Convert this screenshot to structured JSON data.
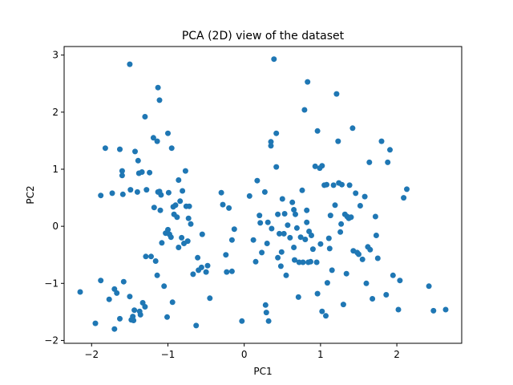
{
  "chart_data": {
    "type": "scatter",
    "title": "PCA (2D) view of the dataset",
    "xlabel": "PC1",
    "ylabel": "PC2",
    "xlim": [
      -2.36,
      2.85
    ],
    "ylim": [
      -2.05,
      3.15
    ],
    "xticks": [
      -2,
      -1,
      0,
      1,
      2
    ],
    "yticks": [
      -2,
      -1,
      0,
      1,
      2,
      3
    ],
    "grid": false,
    "color": "#1f77b4",
    "points": [
      [
        -2.15,
        -1.15
      ],
      [
        -1.95,
        -1.7
      ],
      [
        -1.88,
        0.54
      ],
      [
        -1.88,
        -0.95
      ],
      [
        -1.82,
        1.37
      ],
      [
        -1.77,
        -1.28
      ],
      [
        -1.73,
        0.58
      ],
      [
        -1.7,
        -1.8
      ],
      [
        -1.67,
        -1.17
      ],
      [
        -1.63,
        1.35
      ],
      [
        -1.63,
        -1.62
      ],
      [
        -1.6,
        0.89
      ],
      [
        -1.59,
        0.56
      ],
      [
        -1.6,
        0.97
      ],
      [
        -1.58,
        -0.97
      ],
      [
        -1.5,
        2.84
      ],
      [
        -1.5,
        -1.23
      ],
      [
        -1.49,
        0.64
      ],
      [
        -1.48,
        -1.64
      ],
      [
        -1.46,
        -1.58
      ],
      [
        -1.45,
        -1.65
      ],
      [
        -1.44,
        -1.47
      ],
      [
        -1.43,
        1.31
      ],
      [
        -1.4,
        0.6
      ],
      [
        -1.39,
        1.15
      ],
      [
        -1.38,
        0.93
      ],
      [
        -1.37,
        -1.49
      ],
      [
        -1.36,
        -1.55
      ],
      [
        -1.34,
        0.95
      ],
      [
        -1.33,
        -1.34
      ],
      [
        -1.3,
        -1.41
      ],
      [
        -1.3,
        1.92
      ],
      [
        -1.29,
        -0.53
      ],
      [
        -1.28,
        0.64
      ],
      [
        -1.24,
        0.94
      ],
      [
        -1.22,
        -0.53
      ],
      [
        -1.19,
        1.55
      ],
      [
        -1.18,
        0.33
      ],
      [
        -1.16,
        -0.61
      ],
      [
        -1.14,
        1.49
      ],
      [
        -1.13,
        2.43
      ],
      [
        -1.11,
        2.21
      ],
      [
        -1.14,
        -0.86
      ],
      [
        -1.13,
        0.6
      ],
      [
        -1.11,
        0.61
      ],
      [
        -1.1,
        0.28
      ],
      [
        -1.09,
        0.55
      ],
      [
        -1.08,
        -0.29
      ],
      [
        -1.05,
        -1.05
      ],
      [
        -1.03,
        -0.12
      ],
      [
        -1.01,
        -1.59
      ],
      [
        -1.0,
        1.63
      ],
      [
        -0.99,
        0.59
      ],
      [
        -1.0,
        -0.06
      ],
      [
        -0.98,
        -0.14
      ],
      [
        -0.96,
        -0.19
      ],
      [
        -0.95,
        1.37
      ],
      [
        -0.94,
        -1.33
      ],
      [
        -0.93,
        0.34
      ],
      [
        -0.92,
        0.21
      ],
      [
        -0.9,
        0.37
      ],
      [
        -0.88,
        0.16
      ],
      [
        -0.86,
        -0.37
      ],
      [
        -0.86,
        0.81
      ],
      [
        -0.84,
        0.44
      ],
      [
        -0.82,
        -0.2
      ],
      [
        -0.81,
        0.62
      ],
      [
        -0.79,
        -0.3
      ],
      [
        -0.77,
        0.97
      ],
      [
        -0.76,
        0.35
      ],
      [
        -0.74,
        -0.26
      ],
      [
        -0.73,
        0.14
      ],
      [
        -0.72,
        0.35
      ],
      [
        -0.7,
        0.04
      ],
      [
        -0.67,
        -0.84
      ],
      [
        -0.63,
        -1.74
      ],
      [
        -0.61,
        -0.55
      ],
      [
        -0.6,
        -0.77
      ],
      [
        -0.56,
        -0.72
      ],
      [
        -0.55,
        -0.14
      ],
      [
        -0.5,
        -0.8
      ],
      [
        -0.48,
        -0.69
      ],
      [
        -0.45,
        -1.26
      ],
      [
        -0.3,
        0.59
      ],
      [
        -0.28,
        0.38
      ],
      [
        -0.24,
        -0.5
      ],
      [
        -0.23,
        -0.8
      ],
      [
        -0.2,
        0.32
      ],
      [
        -0.16,
        -0.79
      ],
      [
        -0.16,
        -0.24
      ],
      [
        -0.13,
        -0.05
      ],
      [
        -0.03,
        -1.66
      ],
      [
        0.07,
        0.53
      ],
      [
        0.12,
        -0.24
      ],
      [
        0.15,
        -0.62
      ],
      [
        0.17,
        0.8
      ],
      [
        0.2,
        0.19
      ],
      [
        0.21,
        0.06
      ],
      [
        0.23,
        -0.46
      ],
      [
        0.27,
        0.6
      ],
      [
        0.28,
        -1.38
      ],
      [
        0.29,
        -1.51
      ],
      [
        0.3,
        -0.3
      ],
      [
        0.31,
        0.07
      ],
      [
        0.32,
        -1.66
      ],
      [
        0.35,
        1.41
      ],
      [
        0.35,
        1.48
      ],
      [
        0.36,
        -0.04
      ],
      [
        0.39,
        2.93
      ],
      [
        0.42,
        1.63
      ],
      [
        0.42,
        1.04
      ],
      [
        0.44,
        0.21
      ],
      [
        0.44,
        -0.55
      ],
      [
        0.46,
        -0.13
      ],
      [
        0.48,
        -0.7
      ],
      [
        0.49,
        -0.45
      ],
      [
        0.5,
        0.48
      ],
      [
        0.52,
        -0.13
      ],
      [
        0.53,
        0.22
      ],
      [
        0.55,
        -0.86
      ],
      [
        0.57,
        0.02
      ],
      [
        0.6,
        -0.2
      ],
      [
        0.63,
        0.42
      ],
      [
        0.65,
        0.29
      ],
      [
        0.65,
        -0.37
      ],
      [
        0.66,
        -0.59
      ],
      [
        0.67,
        0.21
      ],
      [
        0.69,
        -0.03
      ],
      [
        0.71,
        -1.24
      ],
      [
        0.72,
        -0.63
      ],
      [
        0.74,
        -0.19
      ],
      [
        0.76,
        0.63
      ],
      [
        0.77,
        -0.63
      ],
      [
        0.79,
        2.04
      ],
      [
        0.8,
        -0.23
      ],
      [
        0.82,
        0.07
      ],
      [
        0.82,
        0.28
      ],
      [
        0.83,
        2.53
      ],
      [
        0.84,
        -0.63
      ],
      [
        0.85,
        -0.09
      ],
      [
        0.87,
        -0.62
      ],
      [
        0.88,
        -0.16
      ],
      [
        0.9,
        -0.4
      ],
      [
        0.93,
        1.05
      ],
      [
        0.95,
        -0.63
      ],
      [
        0.96,
        1.67
      ],
      [
        0.96,
        -1.18
      ],
      [
        0.99,
        1.02
      ],
      [
        1.0,
        -0.31
      ],
      [
        1.02,
        -1.49
      ],
      [
        1.02,
        1.06
      ],
      [
        1.05,
        0.72
      ],
      [
        1.07,
        -1.57
      ],
      [
        1.08,
        0.73
      ],
      [
        1.09,
        -0.99
      ],
      [
        1.11,
        -0.21
      ],
      [
        1.12,
        -0.39
      ],
      [
        1.13,
        0.19
      ],
      [
        1.15,
        -0.77
      ],
      [
        1.17,
        0.72
      ],
      [
        1.19,
        0.37
      ],
      [
        1.21,
        2.32
      ],
      [
        1.23,
        1.49
      ],
      [
        1.24,
        0.76
      ],
      [
        1.26,
        -0.1
      ],
      [
        1.27,
        0.04
      ],
      [
        1.28,
        0.73
      ],
      [
        1.3,
        -1.37
      ],
      [
        1.32,
        0.21
      ],
      [
        1.34,
        -0.83
      ],
      [
        1.35,
        0.17
      ],
      [
        1.37,
        0.14
      ],
      [
        1.38,
        0.72
      ],
      [
        1.4,
        0.16
      ],
      [
        1.42,
        1.72
      ],
      [
        1.43,
        -0.43
      ],
      [
        1.46,
        0.58
      ],
      [
        1.48,
        -0.46
      ],
      [
        1.5,
        -0.49
      ],
      [
        1.52,
        0.36
      ],
      [
        1.55,
        -0.58
      ],
      [
        1.58,
        0.52
      ],
      [
        1.6,
        -1.0
      ],
      [
        1.62,
        -0.36
      ],
      [
        1.64,
        1.12
      ],
      [
        1.65,
        -0.41
      ],
      [
        1.68,
        -1.27
      ],
      [
        1.72,
        0.17
      ],
      [
        1.73,
        -0.16
      ],
      [
        1.75,
        -0.56
      ],
      [
        1.8,
        1.49
      ],
      [
        1.86,
        -1.2
      ],
      [
        1.88,
        1.12
      ],
      [
        1.91,
        1.34
      ],
      [
        1.95,
        -0.86
      ],
      [
        2.02,
        -1.46
      ],
      [
        2.04,
        -0.95
      ],
      [
        2.09,
        0.5
      ],
      [
        2.13,
        0.65
      ],
      [
        2.42,
        -1.05
      ],
      [
        2.48,
        -1.48
      ],
      [
        2.64,
        -1.46
      ],
      [
        -1.7,
        -1.1
      ]
    ]
  }
}
